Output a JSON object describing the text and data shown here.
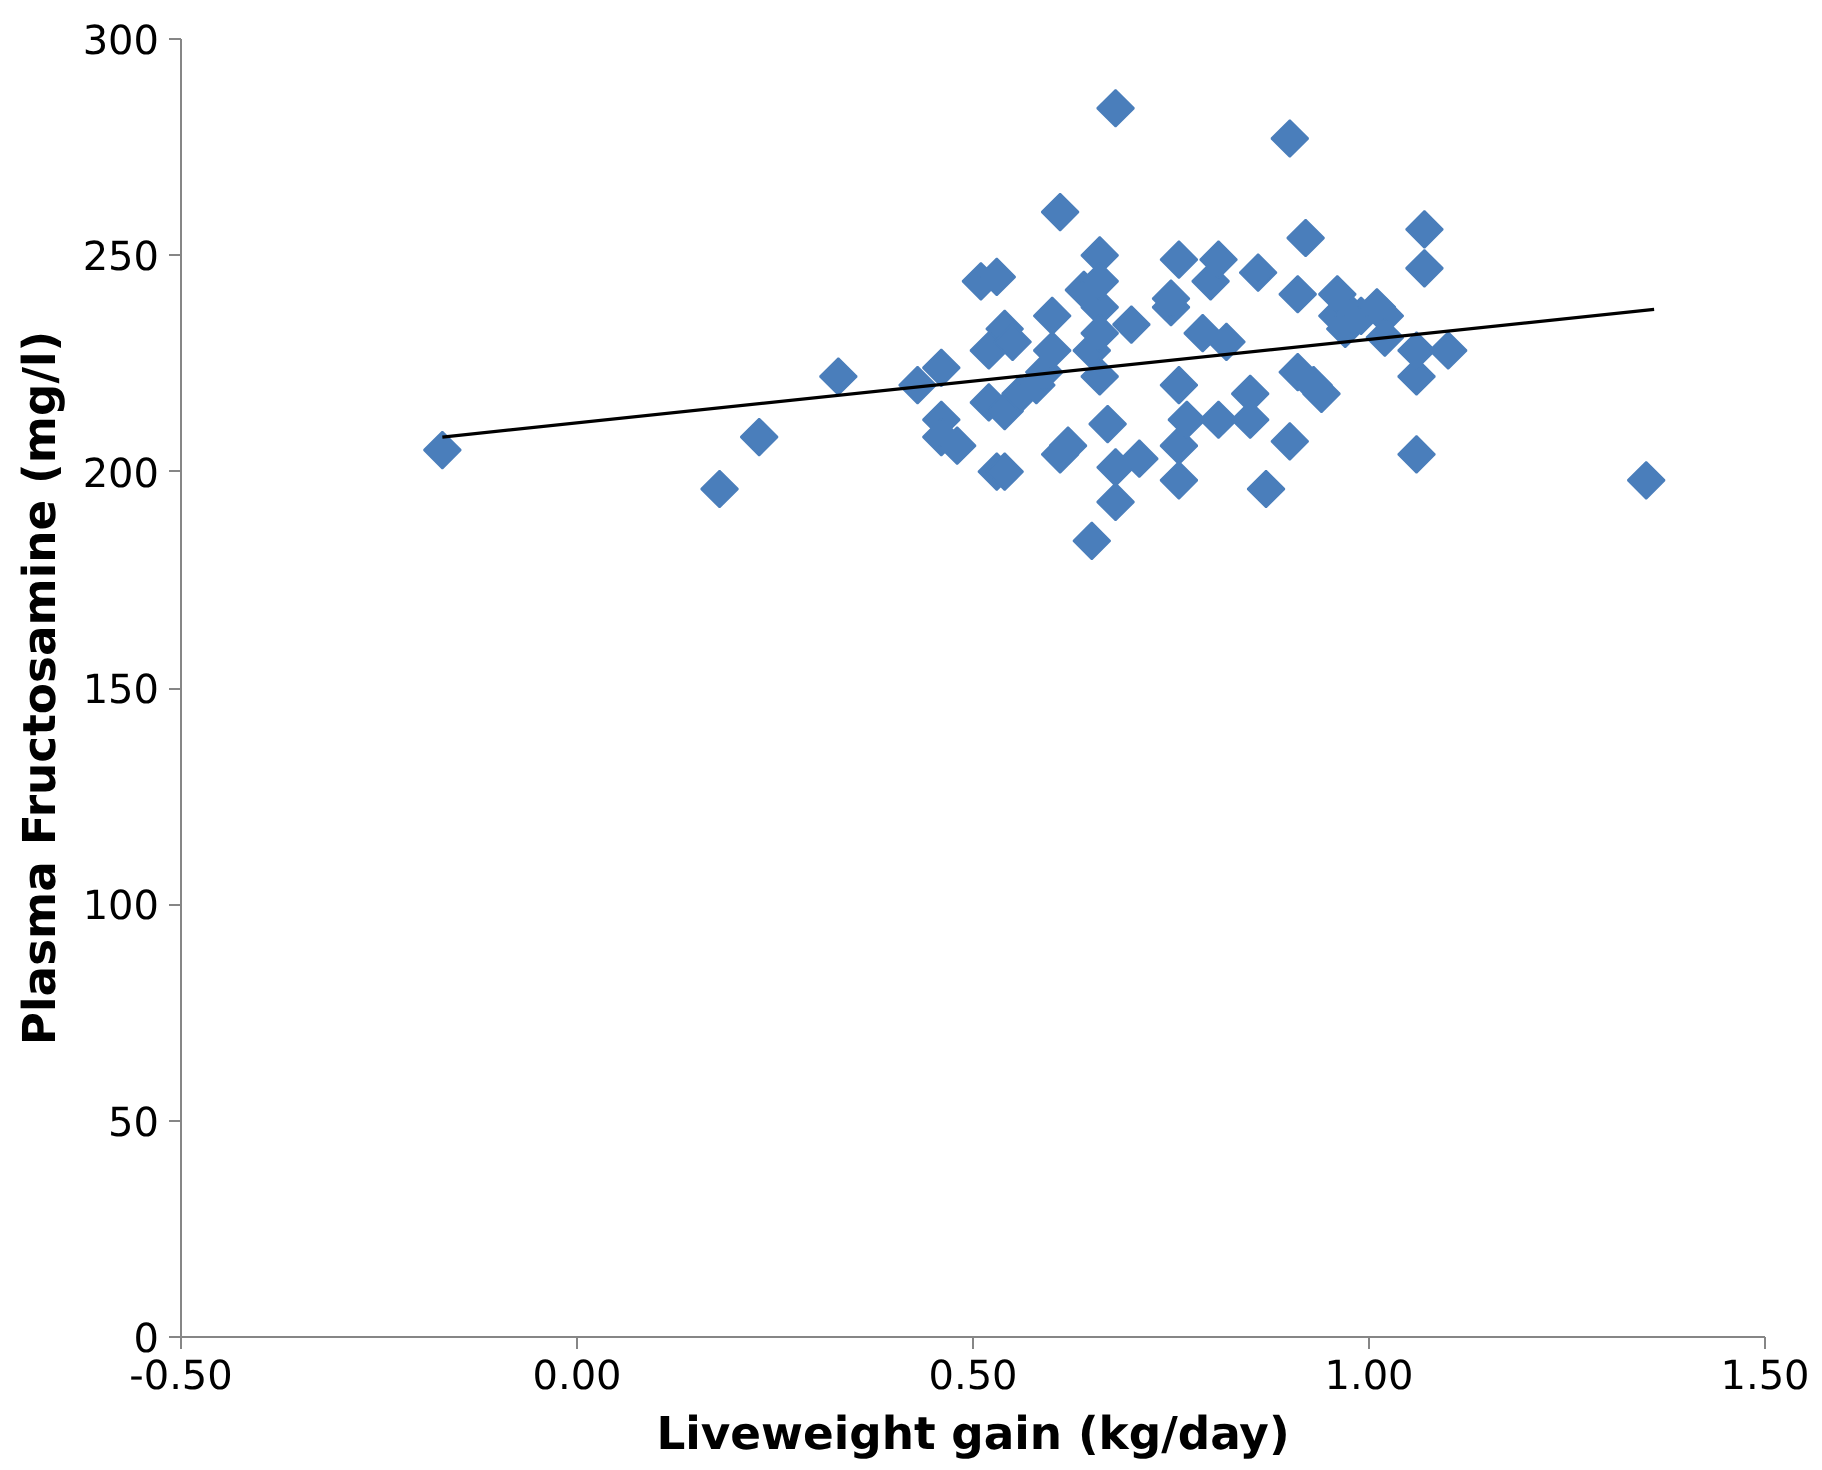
{
  "chart_data": {
    "type": "scatter",
    "xlabel": "Liveweight gain (kg/day)",
    "ylabel": "Plasma Fructosamine (mg/l)",
    "xlim": [
      -0.5,
      1.5
    ],
    "xticks": [
      {
        "value": -0.5,
        "label": "-0.50"
      },
      {
        "value": 0,
        "label": "0.00"
      },
      {
        "value": 0.5,
        "label": "0.50"
      },
      {
        "value": 1,
        "label": "1.00"
      },
      {
        "value": 1.5,
        "label": "1.50"
      }
    ],
    "ylim": [
      0,
      300
    ],
    "yticks": [
      0,
      50,
      100,
      150,
      200,
      250,
      300
    ],
    "grid": false,
    "series": [
      {
        "marker": "diamond",
        "color": "#4a7ebb",
        "x": [
          -0.17,
          0.18,
          0.23,
          0.33,
          0.43,
          0.46,
          0.46,
          0.46,
          0.48,
          0.51,
          0.53,
          0.52,
          0.52,
          0.54,
          0.53,
          0.54,
          0.54,
          0.55,
          0.56,
          0.58,
          0.59,
          0.6,
          0.6,
          0.61,
          0.61,
          0.62,
          0.64,
          0.65,
          0.65,
          0.66,
          0.66,
          0.66,
          0.66,
          0.66,
          0.67,
          0.68,
          0.68,
          0.68,
          0.7,
          0.71,
          0.75,
          0.75,
          0.76,
          0.76,
          0.76,
          0.76,
          0.77,
          0.79,
          0.8,
          0.81,
          0.81,
          0.82,
          0.85,
          0.85,
          0.86,
          0.87,
          0.9,
          0.9,
          0.91,
          0.91,
          0.92,
          0.94,
          0.93,
          0.96,
          0.96,
          0.97,
          0.98,
          0.99,
          1.01,
          1.02,
          1.02,
          1.06,
          1.06,
          1.06,
          1.07,
          1.07,
          1.1,
          1.35
        ],
        "values": [
          205,
          196,
          208,
          222,
          220,
          224,
          212,
          208,
          206,
          244,
          245,
          228,
          216,
          214,
          200,
          200,
          233,
          230,
          218,
          220,
          223,
          228,
          236,
          260,
          204,
          206,
          242,
          228,
          184,
          238,
          250,
          244,
          232,
          222,
          211,
          284,
          201,
          193,
          234,
          203,
          238,
          240,
          249,
          206,
          198,
          220,
          212,
          232,
          244,
          212,
          249,
          230,
          218,
          212,
          246,
          196,
          207,
          277,
          241,
          223,
          254,
          218,
          220,
          236,
          241,
          233,
          236,
          236,
          238,
          236,
          231,
          204,
          222,
          228,
          256,
          247,
          228,
          198
        ]
      },
      {
        "type": "line",
        "marker": "none",
        "color": "#000000",
        "x": [
          -0.17,
          1.36
        ],
        "values": [
          208,
          237.5
        ]
      }
    ]
  }
}
